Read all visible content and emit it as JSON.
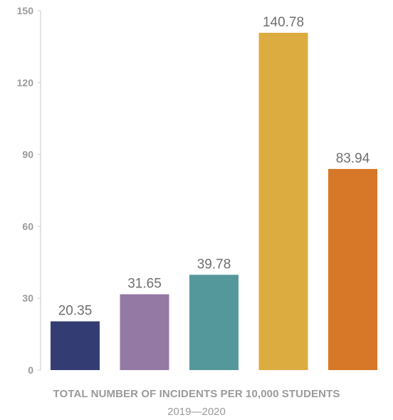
{
  "chart_data": {
    "type": "bar",
    "title": "TOTAL NUMBER OF INCIDENTS PER 10,000 STUDENTS",
    "subtitle": "2019—2020",
    "xlabel": "",
    "ylabel": "",
    "ylim": [
      0,
      150
    ],
    "yticks": [
      0,
      30,
      60,
      90,
      120,
      150
    ],
    "grid": false,
    "legend": "none",
    "values": [
      20.35,
      31.65,
      39.78,
      140.78,
      83.94
    ],
    "value_labels": [
      "20.35",
      "31.65",
      "39.78",
      "140.78",
      "83.94"
    ],
    "colors": [
      "#343d73",
      "#9479a5",
      "#55989c",
      "#ddac40",
      "#d67827"
    ]
  }
}
